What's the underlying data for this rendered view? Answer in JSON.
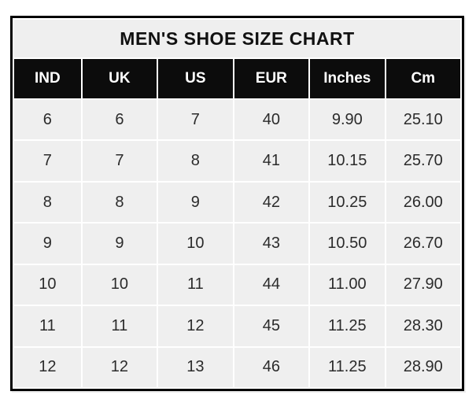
{
  "title": "MEN'S SHOE SIZE CHART",
  "colors": {
    "page_bg": "#ffffff",
    "table_border": "#000000",
    "title_bg": "#efefef",
    "title_text": "#111111",
    "header_bg": "#0c0c0c",
    "header_text": "#ffffff",
    "cell_bg": "#efefef",
    "grid_line": "#ffffff",
    "body_text": "#2b2b2b"
  },
  "chart_data": {
    "type": "table",
    "title": "MEN'S SHOE SIZE CHART",
    "columns": [
      "IND",
      "UK",
      "US",
      "EUR",
      "Inches",
      "Cm"
    ],
    "rows": [
      [
        "6",
        "6",
        "7",
        "40",
        "9.90",
        "25.10"
      ],
      [
        "7",
        "7",
        "8",
        "41",
        "10.15",
        "25.70"
      ],
      [
        "8",
        "8",
        "9",
        "42",
        "10.25",
        "26.00"
      ],
      [
        "9",
        "9",
        "10",
        "43",
        "10.50",
        "26.70"
      ],
      [
        "10",
        "10",
        "11",
        "44",
        "11.00",
        "27.90"
      ],
      [
        "11",
        "11",
        "12",
        "45",
        "11.25",
        "28.30"
      ],
      [
        "12",
        "12",
        "13",
        "46",
        "11.25",
        "28.90"
      ]
    ]
  }
}
